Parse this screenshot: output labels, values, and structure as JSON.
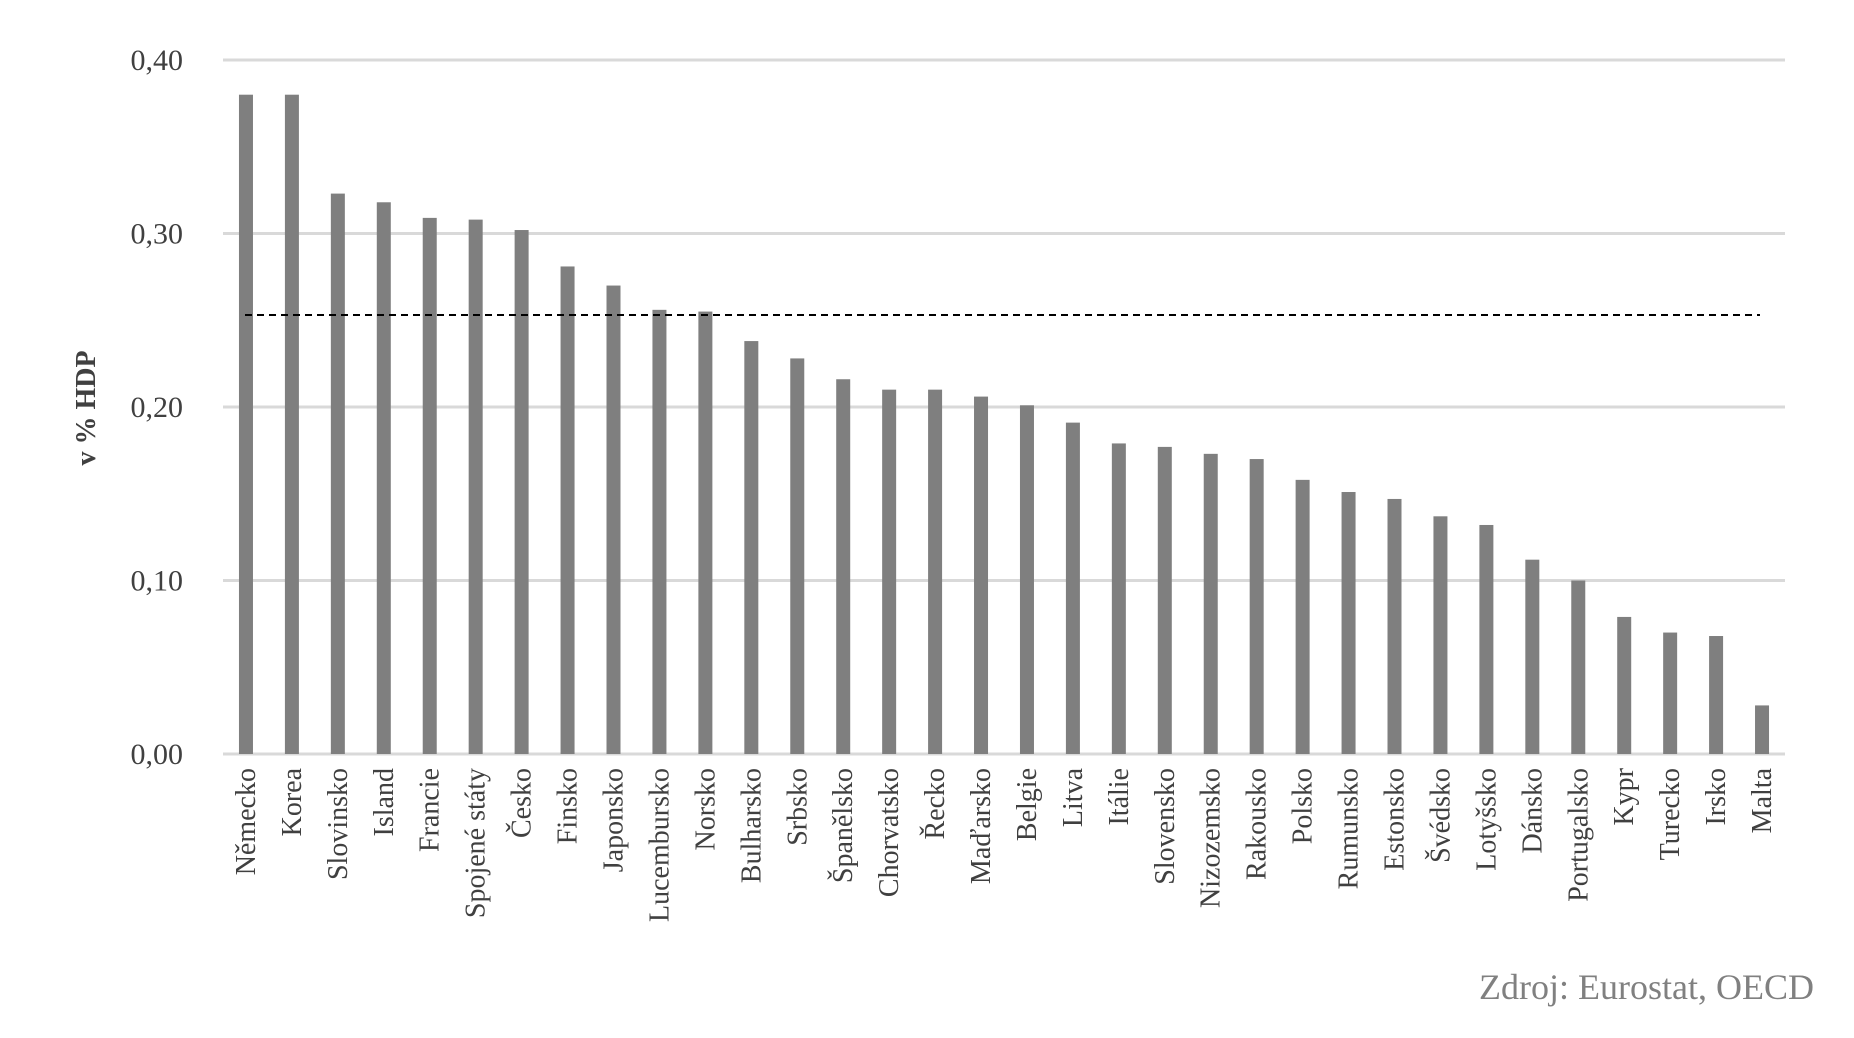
{
  "chart_data": {
    "type": "bar",
    "ylabel": "v % HDP",
    "ylim": [
      0,
      0.4
    ],
    "yticks": [
      "0,00",
      "0,10",
      "0,20",
      "0,30",
      "0,40"
    ],
    "grid": true,
    "bar_color": "#7f7f7f",
    "grid_color": "#d9d9d9",
    "reference_line": {
      "value": 0.253,
      "style": "dashed",
      "color": "#000000"
    },
    "categories": [
      "Německo",
      "Korea",
      "Slovinsko",
      "Island",
      "Francie",
      "Spojené státy",
      "Česko",
      "Finsko",
      "Japonsko",
      "Lucembursko",
      "Norsko",
      "Bulharsko",
      "Srbsko",
      "Španělsko",
      "Chorvatsko",
      "Řecko",
      "Maďarsko",
      "Belgie",
      "Litva",
      "Itálie",
      "Slovensko",
      "Nizozemsko",
      "Rakousko",
      "Polsko",
      "Rumunsko",
      "Estonsko",
      "Švédsko",
      "Lotyšsko",
      "Dánsko",
      "Portugalsko",
      "Kypr",
      "Turecko",
      "Irsko",
      "Malta"
    ],
    "values": [
      0.38,
      0.38,
      0.323,
      0.318,
      0.309,
      0.308,
      0.302,
      0.281,
      0.27,
      0.256,
      0.255,
      0.238,
      0.228,
      0.216,
      0.21,
      0.21,
      0.206,
      0.201,
      0.191,
      0.179,
      0.177,
      0.173,
      0.17,
      0.158,
      0.151,
      0.147,
      0.137,
      0.132,
      0.112,
      0.1,
      0.079,
      0.07,
      0.068,
      0.028
    ]
  },
  "source": "Zdroj: Eurostat, OECD"
}
